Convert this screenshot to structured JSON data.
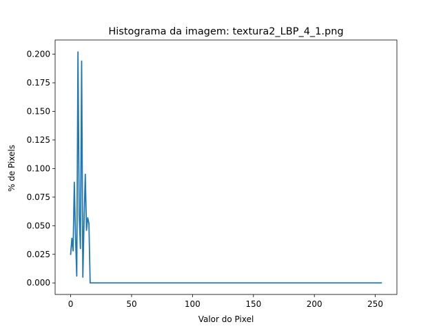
{
  "chart_data": {
    "type": "line",
    "title": "Histograma da imagem: textura2_LBP_4_1.png",
    "xlabel": "Valor do Pixel",
    "ylabel": "% de Pixels",
    "xlim": [
      -12.75,
      267.75
    ],
    "ylim": [
      -0.0101,
      0.2124
    ],
    "xticks": [
      0,
      50,
      100,
      150,
      200,
      250
    ],
    "yticks": [
      0.0,
      0.025,
      0.05,
      0.075,
      0.1,
      0.125,
      0.15,
      0.175,
      0.2
    ],
    "ytick_labels": [
      "0.000",
      "0.025",
      "0.050",
      "0.075",
      "0.100",
      "0.125",
      "0.150",
      "0.175",
      "0.200"
    ],
    "grid": false,
    "series": [
      {
        "color": "#1f77b4",
        "x": [
          0,
          1,
          2,
          3,
          4,
          5,
          6,
          7,
          8,
          9,
          10,
          11,
          12,
          13,
          14,
          15,
          16,
          255
        ],
        "y": [
          0.025,
          0.039,
          0.028,
          0.088,
          0.04,
          0.006,
          0.202,
          0.06,
          0.03,
          0.194,
          0.005,
          0.055,
          0.095,
          0.046,
          0.057,
          0.052,
          0.0,
          0.0
        ]
      }
    ]
  }
}
